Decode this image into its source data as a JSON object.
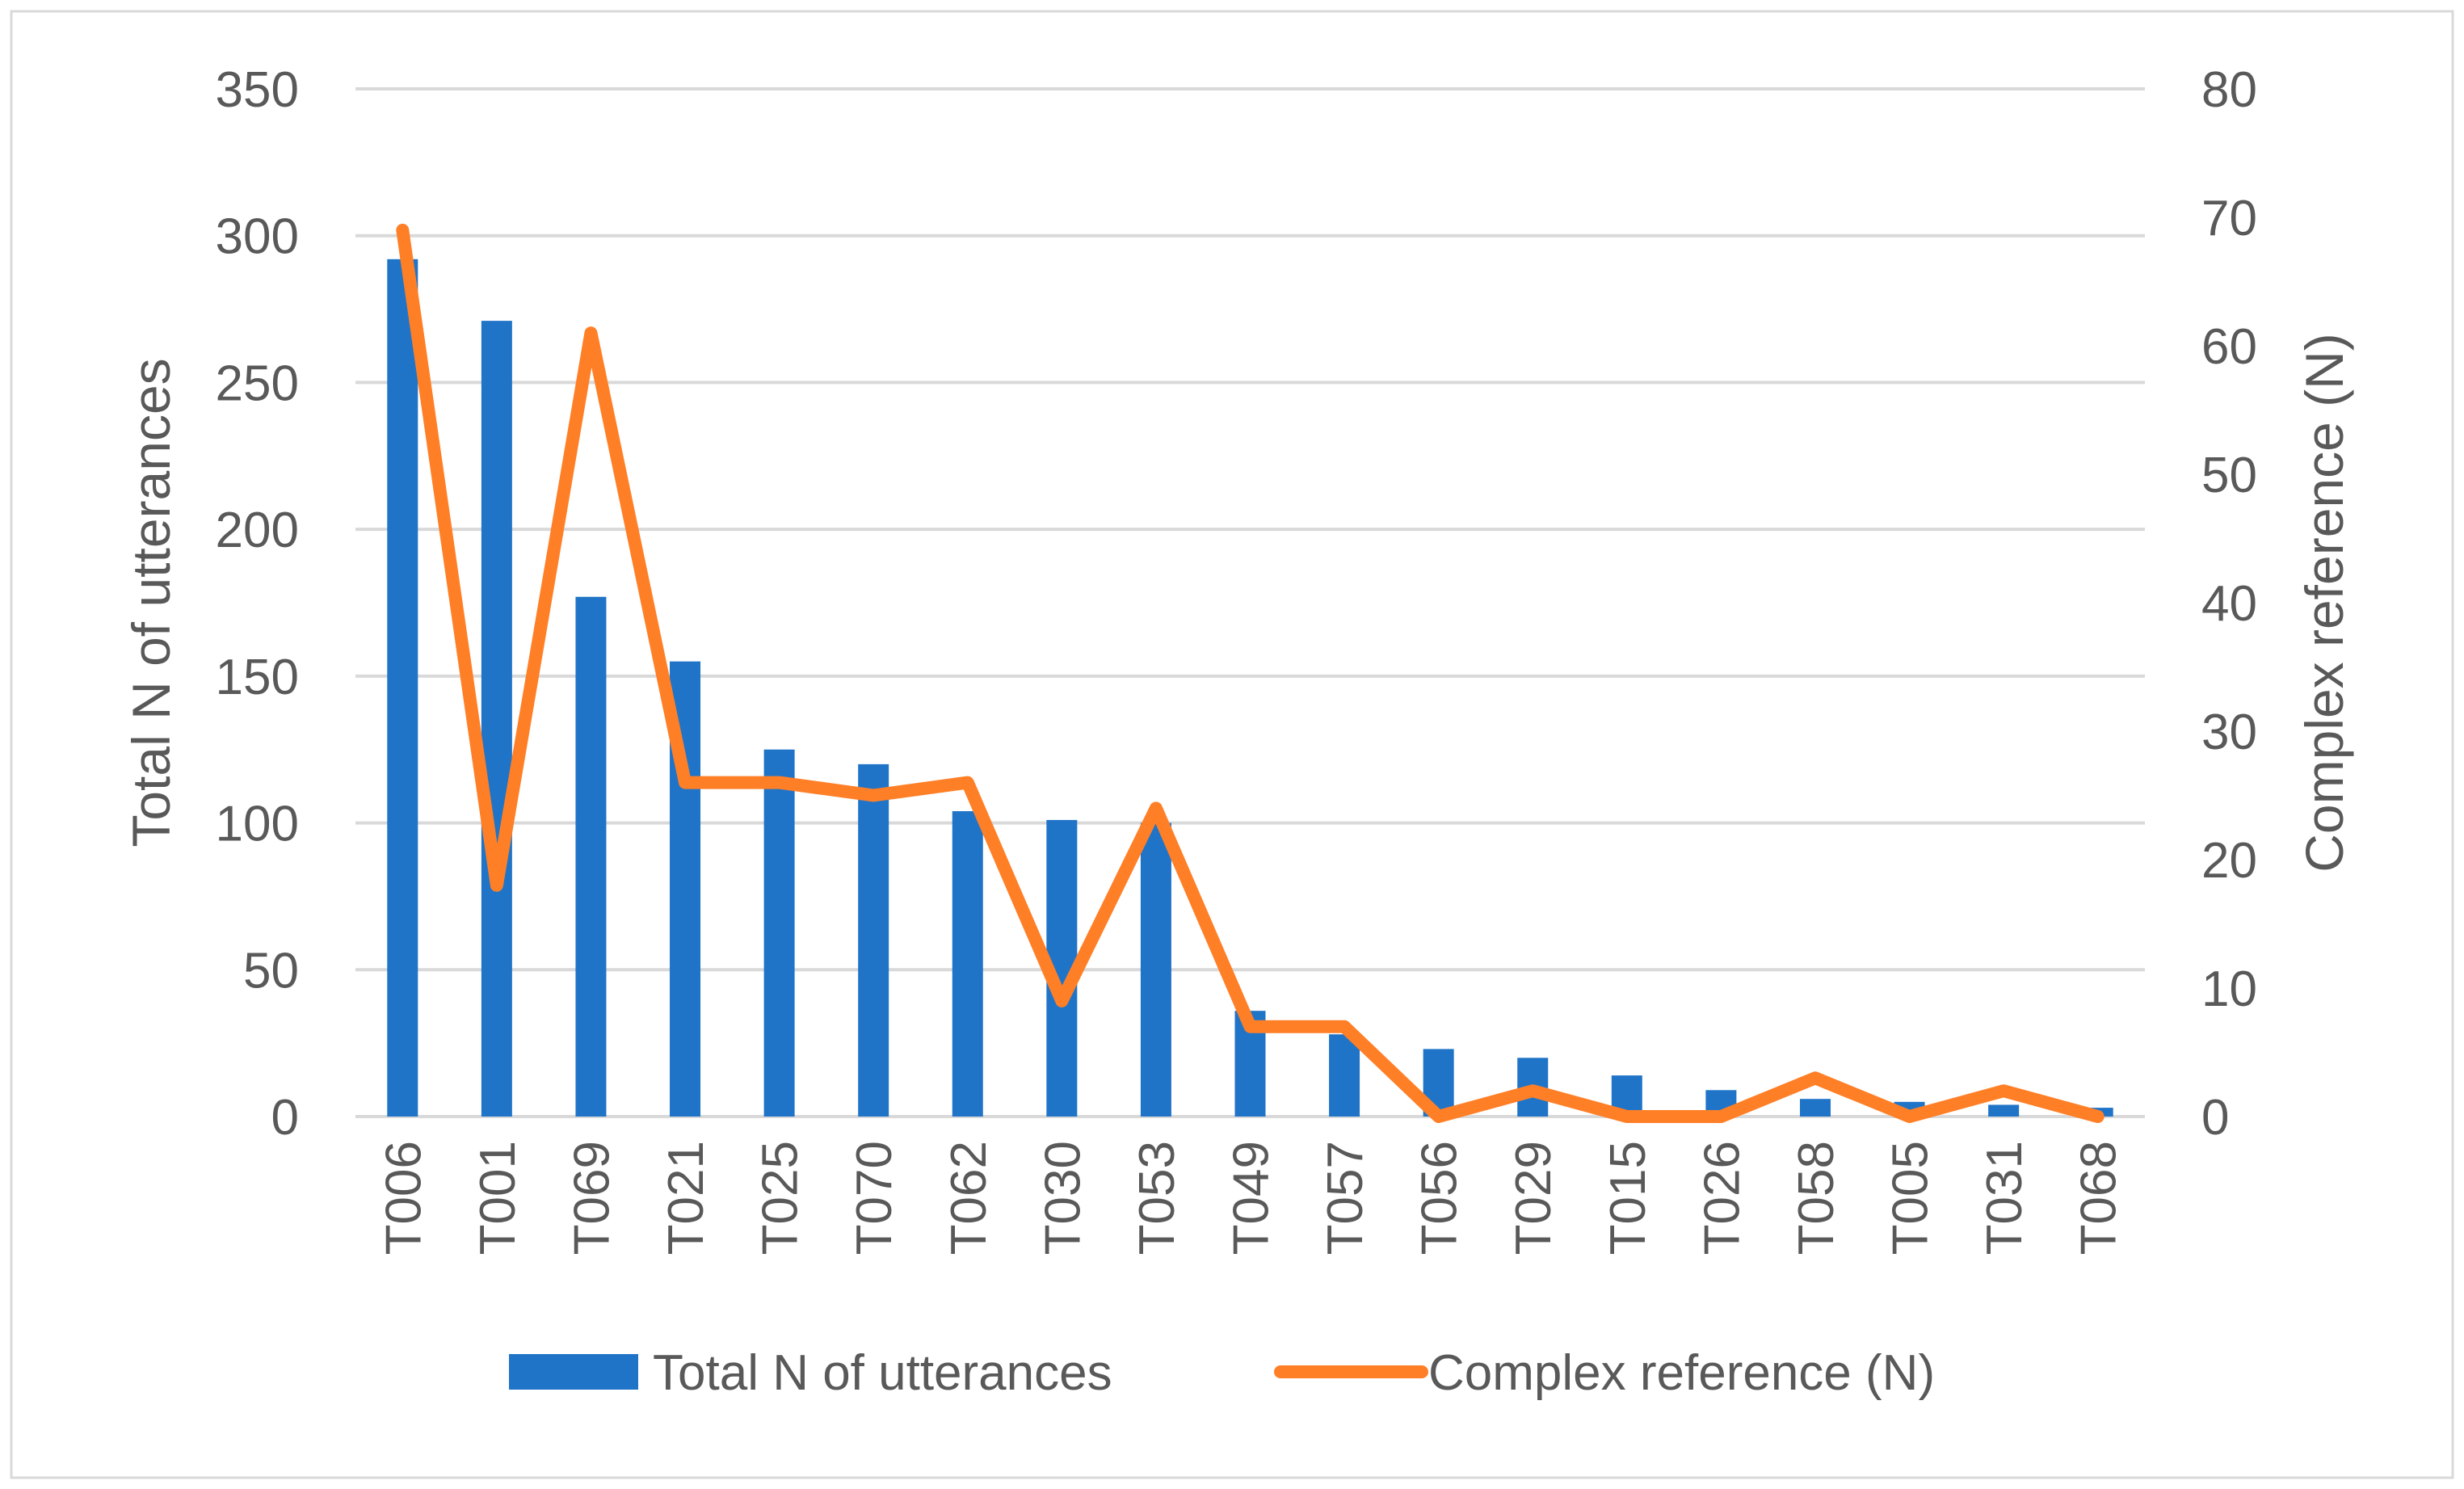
{
  "chart_data": {
    "type": "bar",
    "title": "",
    "categories": [
      "T006",
      "T001",
      "T069",
      "T021",
      "T025",
      "T070",
      "T062",
      "T030",
      "T053",
      "T049",
      "T057",
      "T056",
      "T029",
      "T015",
      "T026",
      "T058",
      "T005",
      "T031",
      "T068"
    ],
    "series": [
      {
        "name": "Total N of utterances",
        "type": "bar",
        "axis": "left",
        "color": "#1f74c8",
        "values": [
          292,
          271,
          177,
          155,
          125,
          120,
          104,
          101,
          100,
          36,
          28,
          23,
          20,
          14,
          9,
          6,
          5,
          4,
          3
        ]
      },
      {
        "name": "Complex reference (N)",
        "type": "line",
        "axis": "right",
        "color": "#ff7f27",
        "values": [
          69,
          18,
          61,
          26,
          26,
          25,
          26,
          9,
          24,
          7,
          7,
          0,
          2,
          0,
          0,
          3,
          0,
          2,
          0
        ]
      }
    ],
    "ylabel_left": "Total N of utterances",
    "ylabel_right": "Complex reference (N)",
    "ylim_left": [
      0,
      350
    ],
    "yticks_left": [
      "0",
      "50",
      "100",
      "150",
      "200",
      "250",
      "300",
      "350"
    ],
    "ylim_right": [
      0,
      80
    ],
    "yticks_right": [
      "0",
      "10",
      "20",
      "30",
      "40",
      "50",
      "60",
      "70",
      "80"
    ],
    "xlabel": "",
    "grid": "horizontal",
    "legend_position": "bottom"
  },
  "colors": {
    "gridline": "#d9d9d9",
    "frame": "#d9d9d9",
    "text": "#595959"
  }
}
